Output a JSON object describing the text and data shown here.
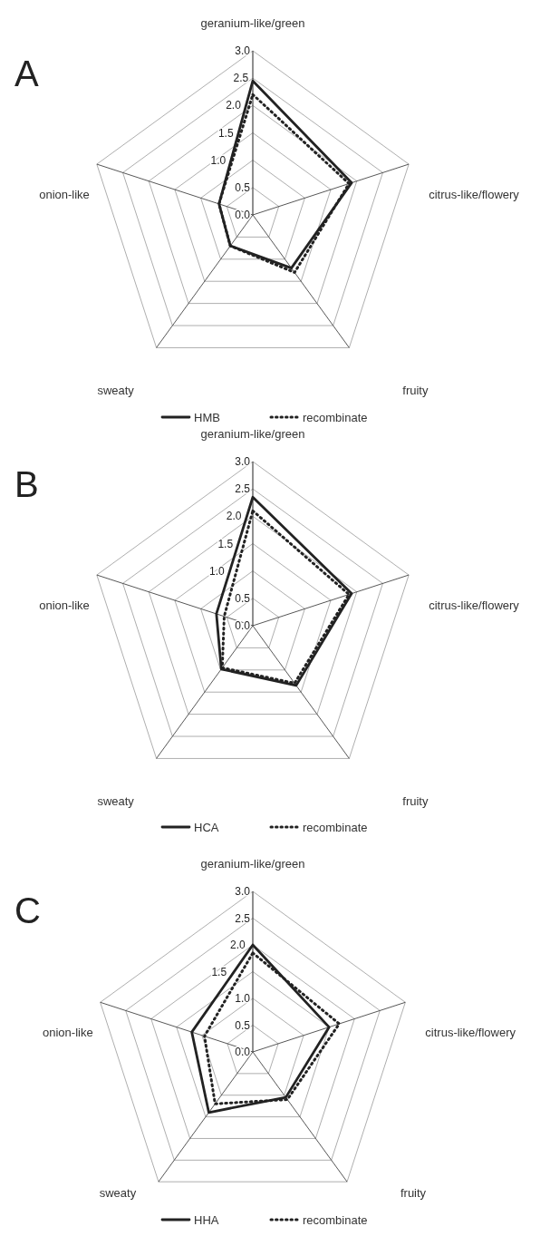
{
  "chart_data": [
    {
      "type": "radar",
      "title": "A",
      "categories": [
        "geranium-like/green",
        "citrus-like/flowery",
        "fruity",
        "sweaty",
        "onion-like"
      ],
      "ylim": [
        0,
        3
      ],
      "yticks": [
        {
          "value": 0,
          "label": "0.0"
        },
        {
          "value": 0.5,
          "label": "0.5"
        },
        {
          "value": 1,
          "label": "1.0"
        },
        {
          "value": 1.5,
          "label": "1.5"
        },
        {
          "value": 2,
          "label": "2.0"
        },
        {
          "value": 2.5,
          "label": "2.5"
        },
        {
          "value": 3,
          "label": "3.0"
        }
      ],
      "grid": true,
      "legend": "bottom",
      "marker": "none",
      "series": [
        {
          "name": "HMB",
          "color": "#222222",
          "line_style": "solid",
          "values": [
            2.45,
            1.9,
            1.2,
            0.7,
            0.65
          ]
        },
        {
          "name": "recombinate",
          "color": "#222222",
          "line_style": "dotted",
          "values": [
            2.2,
            1.85,
            1.3,
            0.7,
            0.65
          ]
        }
      ]
    },
    {
      "type": "radar",
      "title": "B",
      "categories": [
        "geranium-like/green",
        "citrus-like/flowery",
        "fruity",
        "sweaty",
        "onion-like"
      ],
      "ylim": [
        0,
        3
      ],
      "yticks": [
        {
          "value": 0,
          "label": "0.0"
        },
        {
          "value": 0.5,
          "label": "0.5"
        },
        {
          "value": 1,
          "label": "1.0"
        },
        {
          "value": 1.5,
          "label": "1.5"
        },
        {
          "value": 2,
          "label": "2.0"
        },
        {
          "value": 2.5,
          "label": "2.5"
        },
        {
          "value": 3,
          "label": "3.0"
        }
      ],
      "grid": true,
      "legend": "bottom",
      "marker": "none",
      "series": [
        {
          "name": "HCA",
          "color": "#222222",
          "line_style": "solid",
          "values": [
            2.35,
            1.9,
            1.35,
            0.98,
            0.7
          ]
        },
        {
          "name": "recombinate",
          "color": "#222222",
          "line_style": "dotted",
          "values": [
            2.1,
            1.85,
            1.3,
            0.95,
            0.55
          ]
        }
      ]
    },
    {
      "type": "radar",
      "title": "C",
      "categories": [
        "geranium-like/green",
        "citrus-like/flowery",
        "fruity",
        "sweaty",
        "onion-like"
      ],
      "ylim": [
        0,
        3
      ],
      "yticks": [
        {
          "value": 0,
          "label": "0.0"
        },
        {
          "value": 0.5,
          "label": "0.5"
        },
        {
          "value": 1,
          "label": "1.0"
        },
        {
          "value": 1.5,
          "label": "1.5"
        },
        {
          "value": 2,
          "label": "2.0"
        },
        {
          "value": 2.5,
          "label": "2.5"
        },
        {
          "value": 3,
          "label": "3.0"
        }
      ],
      "grid": true,
      "legend": "bottom",
      "marker": "none",
      "series": [
        {
          "name": "HHA",
          "color": "#222222",
          "line_style": "solid",
          "values": [
            2.0,
            1.5,
            1.05,
            1.4,
            1.2
          ]
        },
        {
          "name": "recombinate",
          "color": "#222222",
          "line_style": "dotted",
          "values": [
            1.85,
            1.7,
            1.1,
            1.2,
            0.95
          ]
        }
      ]
    }
  ]
}
